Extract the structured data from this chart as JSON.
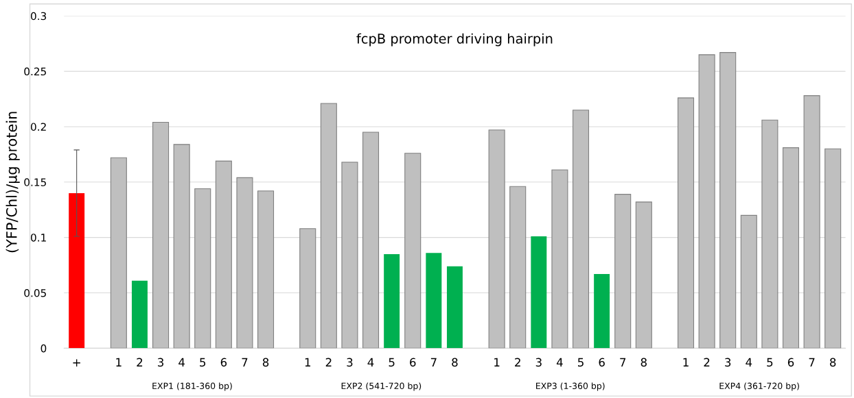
{
  "chart_data": {
    "type": "bar",
    "title": "fcpB promoter driving hairpin",
    "ylabel": "(YFP/Chl)/µg protein",
    "categories": [
      "+",
      null,
      "1",
      "2",
      "3",
      "4",
      "5",
      "6",
      "7",
      "8",
      null,
      "1",
      "2",
      "3",
      "4",
      "5",
      "6",
      "7",
      "8",
      null,
      "1",
      "2",
      "3",
      "4",
      "5",
      "6",
      "7",
      "8",
      null,
      "1",
      "2",
      "3",
      "4",
      "5",
      "6",
      "7",
      "8"
    ],
    "values": [
      0.14,
      null,
      0.172,
      0.061,
      0.204,
      0.184,
      0.144,
      0.169,
      0.154,
      0.142,
      null,
      0.108,
      0.221,
      0.168,
      0.195,
      0.085,
      0.176,
      0.086,
      0.074,
      null,
      0.197,
      0.146,
      0.101,
      0.161,
      0.215,
      0.067,
      0.139,
      0.132,
      null,
      0.226,
      0.265,
      0.267,
      0.12,
      0.206,
      0.181,
      0.228,
      0.18
    ],
    "colors": [
      "#ff0000",
      null,
      "#bfbfbf",
      "#00b050",
      "#bfbfbf",
      "#bfbfbf",
      "#bfbfbf",
      "#bfbfbf",
      "#bfbfbf",
      "#bfbfbf",
      null,
      "#bfbfbf",
      "#bfbfbf",
      "#bfbfbf",
      "#bfbfbf",
      "#00b050",
      "#bfbfbf",
      "#00b050",
      "#00b050",
      null,
      "#bfbfbf",
      "#bfbfbf",
      "#00b050",
      "#bfbfbf",
      "#bfbfbf",
      "#00b050",
      "#bfbfbf",
      "#bfbfbf",
      null,
      "#bfbfbf",
      "#bfbfbf",
      "#bfbfbf",
      "#bfbfbf",
      "#bfbfbf",
      "#bfbfbf",
      "#bfbfbf",
      "#bfbfbf"
    ],
    "errors": [
      0.039,
      null,
      null,
      null,
      null,
      null,
      null,
      null,
      null,
      null,
      null,
      null,
      null,
      null,
      null,
      null,
      null,
      null,
      null,
      null,
      null,
      null,
      null,
      null,
      null,
      null,
      null,
      null,
      null,
      null,
      null,
      null,
      null,
      null,
      null,
      null,
      null
    ],
    "ylim": [
      0,
      0.3
    ],
    "yticks": [
      0,
      0.05,
      0.1,
      0.15,
      0.2,
      0.25,
      0.3
    ],
    "grid": "y",
    "annotations": [
      "EXP1 (181-360 bp)",
      "EXP2 (541-720 bp)",
      "EXP3 (1-360 bp)",
      "EXP4 (361-720 bp)"
    ]
  }
}
